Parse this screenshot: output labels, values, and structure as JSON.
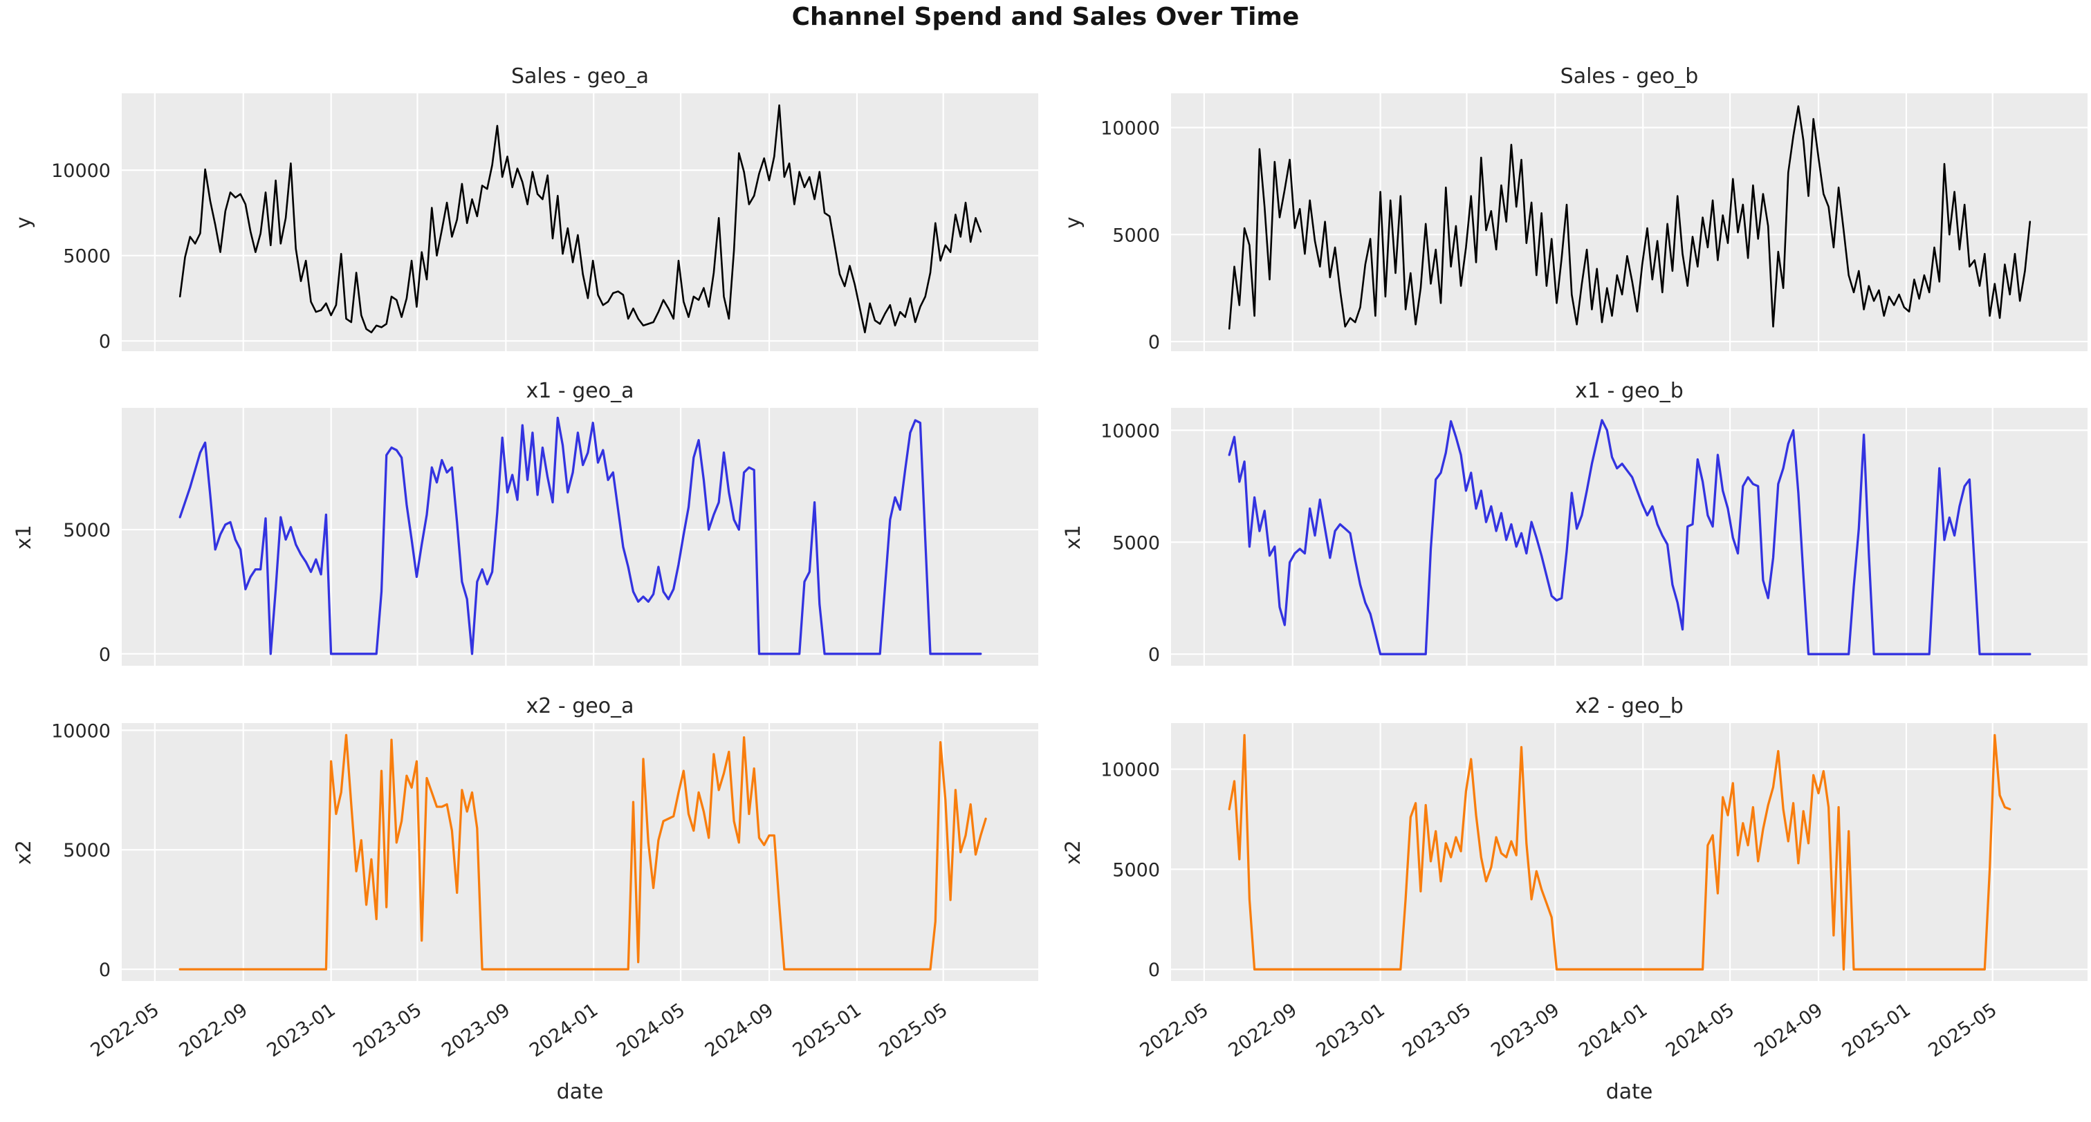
{
  "figure": {
    "suptitle": "Channel Spend and Sales Over Time",
    "xlabel": "date",
    "background": "#ffffff",
    "axes_background": "#ebebeb",
    "grid_color": "#ffffff",
    "tick_color": "#262626",
    "sales_color": "#000000",
    "x1_color": "#3333e0",
    "x2_color": "#f87d0d"
  },
  "chart_data": {
    "type": "line",
    "title": "Channel Spend and Sales Over Time",
    "xlabel": "date",
    "x_start": "2022-06-05",
    "x_step_days": 7,
    "n_points": 160,
    "x_range": [
      "2022-03-16",
      "2025-09-10"
    ],
    "grid": true,
    "legend": "none",
    "x_ticks": [
      {
        "date": "2022-05-01",
        "label": "2022-05"
      },
      {
        "date": "2022-09-01",
        "label": "2022-09"
      },
      {
        "date": "2023-01-01",
        "label": "2023-01"
      },
      {
        "date": "2023-05-01",
        "label": "2023-05"
      },
      {
        "date": "2023-09-01",
        "label": "2023-09"
      },
      {
        "date": "2024-01-01",
        "label": "2024-01"
      },
      {
        "date": "2024-05-01",
        "label": "2024-05"
      },
      {
        "date": "2024-09-01",
        "label": "2024-09"
      },
      {
        "date": "2025-01-01",
        "label": "2025-01"
      },
      {
        "date": "2025-05-01",
        "label": "2025-05"
      }
    ],
    "panels": [
      {
        "id": "sales_geo_a",
        "title": "Sales - geo_a",
        "ylabel": "y",
        "color": "#000000",
        "ylim": [
          -600,
          14500
        ],
        "yticks": [
          0,
          5000,
          10000
        ],
        "values": [
          2600,
          4900,
          6100,
          5700,
          6300,
          10050,
          8200,
          6800,
          5200,
          7600,
          8700,
          8400,
          8600,
          8000,
          6400,
          5200,
          6300,
          8700,
          5600,
          9400,
          5700,
          7200,
          10400,
          5400,
          3500,
          4700,
          2300,
          1700,
          1800,
          2200,
          1500,
          2100,
          5100,
          1300,
          1100,
          4000,
          1500,
          700,
          500,
          900,
          800,
          1000,
          2600,
          2400,
          1400,
          2500,
          4700,
          2000,
          5200,
          3600,
          7800,
          5000,
          6500,
          8100,
          6100,
          7100,
          9200,
          6900,
          8300,
          7300,
          9100,
          8900,
          10300,
          12600,
          9600,
          10800,
          9000,
          10100,
          9300,
          8000,
          9900,
          8600,
          8300,
          9700,
          6000,
          8500,
          5100,
          6600,
          4600,
          6200,
          3900,
          2500,
          4700,
          2700,
          2100,
          2300,
          2800,
          2900,
          2700,
          1300,
          1900,
          1300,
          900,
          1000,
          1100,
          1700,
          2400,
          1900,
          1300,
          4700,
          2300,
          1400,
          2600,
          2400,
          3100,
          2000,
          4000,
          7200,
          2600,
          1300,
          5300,
          11000,
          9900,
          8000,
          8500,
          9800,
          10700,
          9400,
          10800,
          13800,
          9600,
          10400,
          8000,
          9900,
          9000,
          9600,
          8300,
          9900,
          7500,
          7300,
          5600,
          3900,
          3200,
          4400,
          3300,
          1900,
          500,
          2200,
          1200,
          1000,
          1600,
          2100,
          900,
          1700,
          1400,
          2500,
          1100,
          2000,
          2600,
          4000,
          6900,
          4700,
          5600,
          5200,
          7400,
          6100,
          8100,
          5800,
          7200,
          6400
        ]
      },
      {
        "id": "sales_geo_b",
        "title": "Sales - geo_b",
        "ylabel": "y",
        "color": "#000000",
        "ylim": [
          -450,
          11600
        ],
        "yticks": [
          0,
          5000,
          10000
        ],
        "values": [
          600,
          3500,
          1700,
          5300,
          4500,
          1200,
          9000,
          6300,
          2900,
          8400,
          5800,
          7100,
          8500,
          5300,
          6200,
          4100,
          6600,
          4700,
          3500,
          5600,
          3000,
          4400,
          2400,
          700,
          1100,
          900,
          1600,
          3600,
          4800,
          1200,
          7000,
          2100,
          6600,
          3200,
          6800,
          1500,
          3200,
          800,
          2500,
          5500,
          2700,
          4300,
          1800,
          7200,
          3500,
          5400,
          2600,
          4400,
          6800,
          3700,
          8600,
          5200,
          6100,
          4300,
          7300,
          5600,
          9200,
          6300,
          8500,
          4600,
          6500,
          3100,
          6000,
          2600,
          4800,
          1800,
          3900,
          6400,
          2200,
          800,
          2700,
          4300,
          1500,
          3400,
          900,
          2500,
          1200,
          3100,
          2200,
          4000,
          2800,
          1400,
          3600,
          5300,
          2900,
          4700,
          2300,
          5500,
          3300,
          6800,
          4100,
          2600,
          4900,
          3500,
          5800,
          4400,
          6600,
          3800,
          5900,
          4600,
          7600,
          5100,
          6400,
          3900,
          7300,
          4800,
          6900,
          5400,
          700,
          4200,
          2500,
          7900,
          9600,
          11000,
          9400,
          6800,
          10400,
          8600,
          6900,
          6300,
          4400,
          7200,
          5200,
          3100,
          2300,
          3300,
          1500,
          2600,
          1900,
          2400,
          1200,
          2100,
          1700,
          2200,
          1600,
          1400,
          2900,
          2000,
          3100,
          2300,
          4400,
          2800,
          8300,
          5000,
          7000,
          4300,
          6400,
          3500,
          3800,
          2600,
          4100,
          1200,
          2700,
          1100,
          3600,
          2200,
          4100,
          1900,
          3300,
          5600
        ]
      },
      {
        "id": "x1_geo_a",
        "title": "x1 - geo_a",
        "ylabel": "x1",
        "color": "#3333e0",
        "ylim": [
          -480,
          9900
        ],
        "yticks": [
          0,
          5000
        ],
        "values": [
          5500,
          6100,
          6700,
          7400,
          8100,
          8500,
          6400,
          4200,
          4800,
          5200,
          5300,
          4600,
          4200,
          2600,
          3100,
          3400,
          3400,
          5450,
          0,
          2600,
          5500,
          4600,
          5100,
          4400,
          4000,
          3700,
          3300,
          3800,
          3200,
          5600,
          0,
          0,
          0,
          0,
          0,
          0,
          0,
          0,
          0,
          0,
          2500,
          8000,
          8300,
          8200,
          7900,
          6000,
          4600,
          3100,
          4400,
          5600,
          7500,
          6900,
          7800,
          7300,
          7500,
          5300,
          2900,
          2200,
          0,
          2900,
          3400,
          2800,
          3300,
          5700,
          8700,
          6500,
          7200,
          6200,
          9200,
          7000,
          8900,
          6400,
          8300,
          7100,
          6100,
          9500,
          8400,
          6500,
          7300,
          8900,
          7600,
          8100,
          9300,
          7700,
          8200,
          7000,
          7300,
          5800,
          4300,
          3500,
          2500,
          2100,
          2300,
          2100,
          2400,
          3500,
          2500,
          2200,
          2600,
          3600,
          4800,
          5900,
          7900,
          8600,
          7000,
          5000,
          5600,
          6100,
          8100,
          6500,
          5400,
          5000,
          7300,
          7500,
          7400,
          0,
          0,
          0,
          0,
          0,
          0,
          0,
          0,
          0,
          2900,
          3300,
          6100,
          2000,
          0,
          0,
          0,
          0,
          0,
          0,
          0,
          0,
          0,
          0,
          0,
          0,
          2700,
          5400,
          6300,
          5800,
          7400,
          8900,
          9400,
          9300,
          4600,
          0,
          0,
          0,
          0,
          0,
          0,
          0,
          0,
          0,
          0,
          0
        ]
      },
      {
        "id": "x1_geo_b",
        "title": "x1 - geo_b",
        "ylabel": "x1",
        "color": "#3333e0",
        "ylim": [
          -520,
          11000
        ],
        "yticks": [
          0,
          5000,
          10000
        ],
        "values": [
          8900,
          9700,
          7700,
          8600,
          4800,
          7000,
          5500,
          6400,
          4400,
          4800,
          2100,
          1300,
          4100,
          4500,
          4700,
          4500,
          6500,
          5300,
          6900,
          5600,
          4300,
          5500,
          5800,
          5600,
          5400,
          4200,
          3100,
          2300,
          1800,
          900,
          0,
          0,
          0,
          0,
          0,
          0,
          0,
          0,
          0,
          0,
          4700,
          7800,
          8100,
          9000,
          10400,
          9700,
          8900,
          7300,
          8100,
          6500,
          7300,
          5900,
          6600,
          5500,
          6300,
          5100,
          5800,
          4800,
          5400,
          4500,
          5900,
          5200,
          4400,
          3500,
          2600,
          2400,
          2500,
          4600,
          7200,
          5600,
          6200,
          7300,
          8500,
          9500,
          10450,
          10000,
          8800,
          8300,
          8500,
          8200,
          7900,
          7300,
          6700,
          6200,
          6600,
          5800,
          5300,
          4900,
          3100,
          2300,
          1100,
          5700,
          5800,
          8700,
          7700,
          6200,
          5700,
          8900,
          7300,
          6500,
          5200,
          4500,
          7500,
          7900,
          7600,
          7500,
          3300,
          2500,
          4300,
          7600,
          8300,
          9400,
          10000,
          7200,
          3500,
          0,
          0,
          0,
          0,
          0,
          0,
          0,
          0,
          0,
          3000,
          5600,
          9800,
          4500,
          0,
          0,
          0,
          0,
          0,
          0,
          0,
          0,
          0,
          0,
          0,
          0,
          4200,
          8300,
          5100,
          6100,
          5300,
          6600,
          7500,
          7800,
          3900,
          0,
          0,
          0,
          0,
          0,
          0,
          0,
          0,
          0,
          0,
          0
        ]
      },
      {
        "id": "x2_geo_a",
        "title": "x2 - geo_a",
        "ylabel": "x2",
        "color": "#f87d0d",
        "ylim": [
          -490,
          10300
        ],
        "yticks": [
          0,
          5000,
          10000
        ],
        "values": [
          0,
          0,
          0,
          0,
          0,
          0,
          0,
          0,
          0,
          0,
          0,
          0,
          0,
          0,
          0,
          0,
          0,
          0,
          0,
          0,
          0,
          0,
          0,
          0,
          0,
          0,
          0,
          0,
          0,
          0,
          8700,
          6500,
          7400,
          9800,
          6900,
          4100,
          5400,
          2700,
          4600,
          2100,
          8300,
          2600,
          9600,
          5300,
          6200,
          8100,
          7600,
          8700,
          1200,
          8000,
          7400,
          6800,
          6800,
          6900,
          5800,
          3200,
          7500,
          6600,
          7400,
          5900,
          0,
          0,
          0,
          0,
          0,
          0,
          0,
          0,
          0,
          0,
          0,
          0,
          0,
          0,
          0,
          0,
          0,
          0,
          0,
          0,
          0,
          0,
          0,
          0,
          0,
          0,
          0,
          0,
          0,
          0,
          7000,
          300,
          8800,
          5300,
          3400,
          5400,
          6200,
          6300,
          6400,
          7400,
          8300,
          6500,
          5800,
          7400,
          6600,
          5500,
          9000,
          7500,
          8200,
          9100,
          6200,
          5300,
          9700,
          6500,
          8400,
          5500,
          5200,
          5600,
          5600,
          2700,
          0,
          0,
          0,
          0,
          0,
          0,
          0,
          0,
          0,
          0,
          0,
          0,
          0,
          0,
          0,
          0,
          0,
          0,
          0,
          0,
          0,
          0,
          0,
          0,
          0,
          0,
          0,
          0,
          0,
          0,
          2000,
          9500,
          7100,
          2900,
          7500,
          4900,
          5600,
          6900,
          4800,
          5600,
          6300
        ]
      },
      {
        "id": "x2_geo_b",
        "title": "x2 - geo_b",
        "ylabel": "x2",
        "color": "#f87d0d",
        "ylim": [
          -580,
          12300
        ],
        "yticks": [
          0,
          5000,
          10000
        ],
        "values": [
          8000,
          9400,
          5500,
          11700,
          3500,
          0,
          0,
          0,
          0,
          0,
          0,
          0,
          0,
          0,
          0,
          0,
          0,
          0,
          0,
          0,
          0,
          0,
          0,
          0,
          0,
          0,
          0,
          0,
          0,
          0,
          0,
          0,
          0,
          0,
          0,
          3500,
          7600,
          8300,
          3900,
          8200,
          5400,
          6900,
          4400,
          6300,
          5600,
          6600,
          5900,
          8900,
          10500,
          7700,
          5600,
          4400,
          5100,
          6600,
          5800,
          5600,
          6400,
          5700,
          11100,
          6300,
          3500,
          4900,
          4000,
          3300,
          2600,
          0,
          0,
          0,
          0,
          0,
          0,
          0,
          0,
          0,
          0,
          0,
          0,
          0,
          0,
          0,
          0,
          0,
          0,
          0,
          0,
          0,
          0,
          0,
          0,
          0,
          0,
          0,
          0,
          0,
          0,
          6200,
          6700,
          3800,
          8600,
          7700,
          9300,
          5700,
          7300,
          6200,
          8100,
          5400,
          7000,
          8200,
          9100,
          10900,
          8000,
          6400,
          8300,
          5300,
          7900,
          6300,
          9700,
          8800,
          9900,
          8100,
          1700,
          8100,
          0,
          6900,
          0,
          0,
          0,
          0,
          0,
          0,
          0,
          0,
          0,
          0,
          0,
          0,
          0,
          0,
          0,
          0,
          0,
          0,
          0,
          0,
          0,
          0,
          0,
          0,
          0,
          0,
          0,
          5000,
          11700,
          8700,
          8100,
          8000
        ]
      }
    ]
  }
}
